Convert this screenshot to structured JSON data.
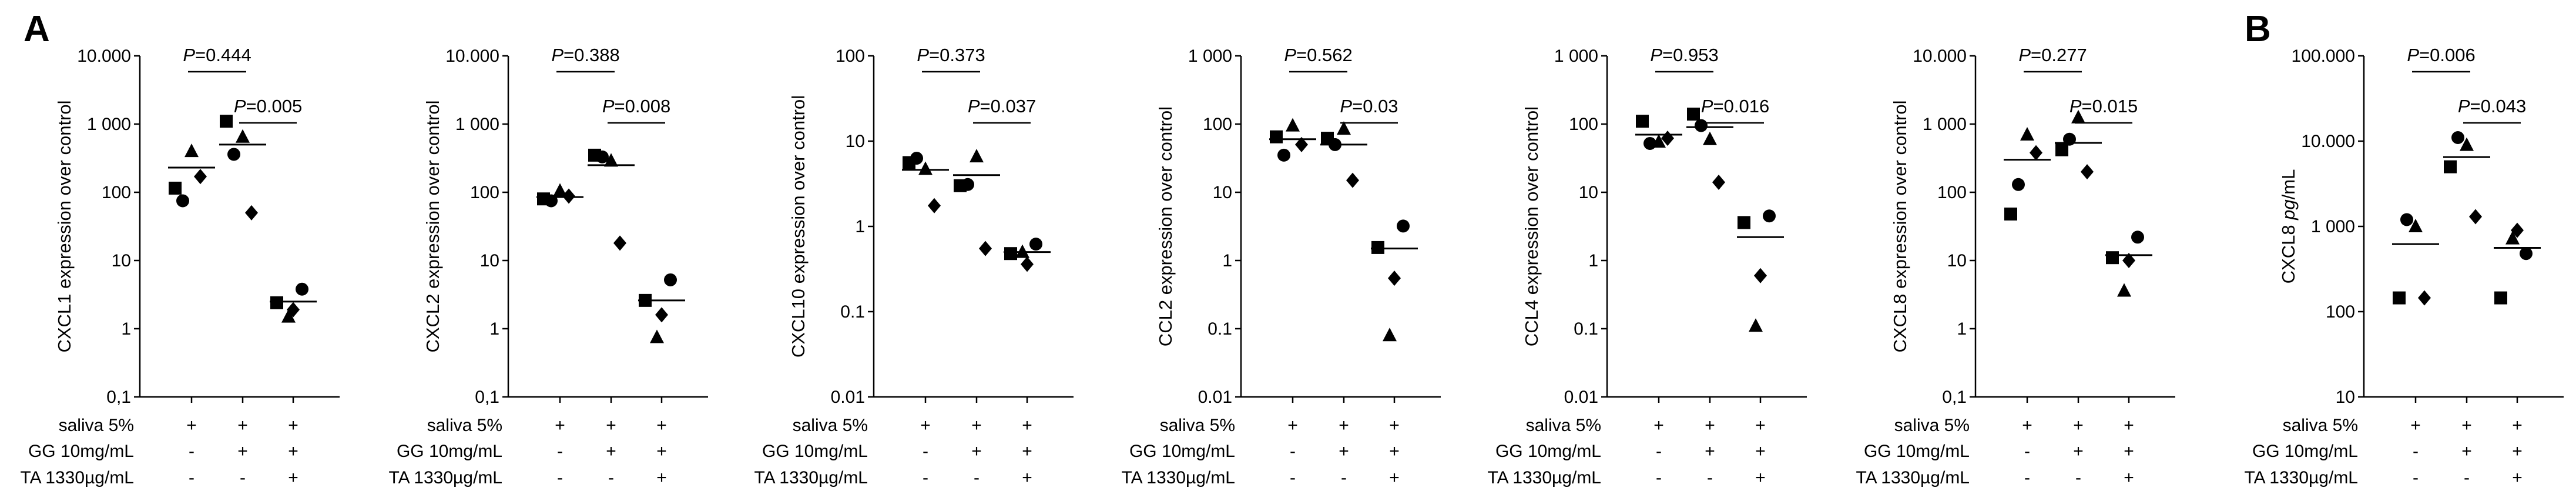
{
  "panel_letters": {
    "a": "A",
    "b": "B"
  },
  "conditions": {
    "labels": [
      "saliva 5%",
      "GG 10mg/mL",
      "TA 1330µg/mL"
    ],
    "signs": [
      [
        "+",
        "+",
        "+"
      ],
      [
        "-",
        "+",
        "+"
      ],
      [
        "-",
        "-",
        "+"
      ]
    ]
  },
  "marker_shapes": [
    "circle",
    "square",
    "triangle",
    "diamond"
  ],
  "chart_data": [
    {
      "type": "scatter",
      "ylabel": "CXCL1 expression over control",
      "yscale": "log",
      "ylim": [
        0.1,
        10000
      ],
      "yticks": [
        {
          "v": 0.1,
          "label": "0,1"
        },
        {
          "v": 1,
          "label": "1"
        },
        {
          "v": 10,
          "label": "10"
        },
        {
          "v": 100,
          "label": "100"
        },
        {
          "v": 1000,
          "label": "1 000"
        },
        {
          "v": 10000,
          "label": "10.000"
        }
      ],
      "groups": [
        {
          "circle": 75,
          "square": 115,
          "triangle": 400,
          "diamond": 170,
          "mean": 230
        },
        {
          "circle": 360,
          "square": 1100,
          "triangle": 650,
          "diamond": 50,
          "mean": 500
        },
        {
          "circle": 3.8,
          "square": 2.4,
          "triangle": 1.5,
          "diamond": 1.9,
          "mean": 2.5
        }
      ],
      "pvalues": [
        {
          "label": "P=0.444",
          "from": 0,
          "to": 1
        },
        {
          "label": "P=0.005",
          "from": 1,
          "to": 2
        }
      ]
    },
    {
      "type": "scatter",
      "ylabel": "CXCL2 expression over control",
      "yscale": "log",
      "ylim": [
        0.1,
        10000
      ],
      "yticks": [
        {
          "v": 0.1,
          "label": "0,1"
        },
        {
          "v": 1,
          "label": "1"
        },
        {
          "v": 10,
          "label": "10"
        },
        {
          "v": 100,
          "label": "100"
        },
        {
          "v": 1000,
          "label": "1 000"
        },
        {
          "v": 10000,
          "label": "10.000"
        }
      ],
      "groups": [
        {
          "circle": 75,
          "square": 80,
          "triangle": 105,
          "diamond": 88,
          "mean": 85
        },
        {
          "circle": 330,
          "square": 350,
          "triangle": 290,
          "diamond": 18,
          "mean": 250
        },
        {
          "circle": 5.2,
          "square": 2.6,
          "triangle": 0.75,
          "diamond": 1.6,
          "mean": 2.6
        }
      ],
      "pvalues": [
        {
          "label": "P=0.388",
          "from": 0,
          "to": 1
        },
        {
          "label": "P=0.008",
          "from": 1,
          "to": 2
        }
      ]
    },
    {
      "type": "scatter",
      "ylabel": "CXCL10 expression over control",
      "yscale": "log",
      "ylim": [
        0.01,
        100
      ],
      "yticks": [
        {
          "v": 0.01,
          "label": "0.01"
        },
        {
          "v": 0.1,
          "label": "0.1"
        },
        {
          "v": 1,
          "label": "1"
        },
        {
          "v": 10,
          "label": "10"
        },
        {
          "v": 100,
          "label": "100"
        }
      ],
      "groups": [
        {
          "circle": 6.3,
          "square": 5.6,
          "triangle": 4.7,
          "diamond": 1.75,
          "mean": 4.6
        },
        {
          "circle": 3.1,
          "square": 3.0,
          "triangle": 6.6,
          "diamond": 0.55,
          "mean": 4.0
        },
        {
          "circle": 0.62,
          "square": 0.48,
          "triangle": 0.5,
          "diamond": 0.36,
          "mean": 0.5
        }
      ],
      "pvalues": [
        {
          "label": "P=0.373",
          "from": 0,
          "to": 1
        },
        {
          "label": "P=0.037",
          "from": 1,
          "to": 2
        }
      ]
    },
    {
      "type": "scatter",
      "ylabel": "CCL2 expression over control",
      "yscale": "log",
      "ylim": [
        0.01,
        1000
      ],
      "yticks": [
        {
          "v": 0.01,
          "label": "0.01"
        },
        {
          "v": 0.1,
          "label": "0.1"
        },
        {
          "v": 1,
          "label": "1"
        },
        {
          "v": 10,
          "label": "10"
        },
        {
          "v": 100,
          "label": "100"
        },
        {
          "v": 1000,
          "label": "1 000"
        }
      ],
      "groups": [
        {
          "circle": 35,
          "square": 65,
          "triangle": 95,
          "diamond": 50,
          "mean": 60
        },
        {
          "circle": 50,
          "square": 62,
          "triangle": 85,
          "diamond": 15,
          "mean": 50
        },
        {
          "circle": 3.2,
          "square": 1.55,
          "triangle": 0.08,
          "diamond": 0.55,
          "mean": 1.5
        }
      ],
      "pvalues": [
        {
          "label": "P=0.562",
          "from": 0,
          "to": 1
        },
        {
          "label": "P=0.03",
          "from": 1,
          "to": 2
        }
      ]
    },
    {
      "type": "scatter",
      "ylabel": "CCL4 expression over control",
      "yscale": "log",
      "ylim": [
        0.01,
        1000
      ],
      "yticks": [
        {
          "v": 0.01,
          "label": "0.01"
        },
        {
          "v": 0.1,
          "label": "0.1"
        },
        {
          "v": 1,
          "label": "1"
        },
        {
          "v": 10,
          "label": "10"
        },
        {
          "v": 100,
          "label": "100"
        },
        {
          "v": 1000,
          "label": "1 000"
        }
      ],
      "groups": [
        {
          "circle": 52,
          "square": 110,
          "triangle": 55,
          "diamond": 62,
          "mean": 70
        },
        {
          "circle": 95,
          "square": 140,
          "triangle": 60,
          "diamond": 14,
          "mean": 90
        },
        {
          "circle": 4.5,
          "square": 3.6,
          "triangle": 0.11,
          "diamond": 0.6,
          "mean": 2.2
        }
      ],
      "pvalues": [
        {
          "label": "P=0.953",
          "from": 0,
          "to": 1
        },
        {
          "label": "P=0.016",
          "from": 1,
          "to": 2
        }
      ]
    },
    {
      "type": "scatter",
      "ylabel": "CXCL8 expression over control",
      "yscale": "log",
      "ylim": [
        0.1,
        10000
      ],
      "yticks": [
        {
          "v": 0.1,
          "label": "0,1"
        },
        {
          "v": 1,
          "label": "1"
        },
        {
          "v": 10,
          "label": "10"
        },
        {
          "v": 100,
          "label": "100"
        },
        {
          "v": 1000,
          "label": "1 000"
        },
        {
          "v": 10000,
          "label": "10.000"
        }
      ],
      "groups": [
        {
          "circle": 130,
          "square": 48,
          "triangle": 700,
          "diamond": 380,
          "mean": 300
        },
        {
          "circle": 600,
          "square": 420,
          "triangle": 1250,
          "diamond": 200,
          "mean": 530
        },
        {
          "circle": 22,
          "square": 11,
          "triangle": 3.6,
          "diamond": 10,
          "mean": 12
        }
      ],
      "pvalues": [
        {
          "label": "P=0.277",
          "from": 0,
          "to": 1
        },
        {
          "label": "P=0.015",
          "from": 1,
          "to": 2
        }
      ]
    },
    {
      "type": "scatter",
      "ylabel": "CXCL8 pg/mL",
      "yscale": "log",
      "ylim": [
        10,
        100000
      ],
      "yticks": [
        {
          "v": 10,
          "label": "10"
        },
        {
          "v": 100,
          "label": "100"
        },
        {
          "v": 1000,
          "label": "1 000"
        },
        {
          "v": 10000,
          "label": "10.000"
        },
        {
          "v": 100000,
          "label": "100.000"
        }
      ],
      "groups": [
        {
          "circle": 1200,
          "square": 145,
          "triangle": 1000,
          "diamond": 145,
          "mean": 620
        },
        {
          "circle": 11000,
          "square": 5000,
          "triangle": 9000,
          "diamond": 1300,
          "mean": 6500
        },
        {
          "circle": 480,
          "square": 145,
          "triangle": 720,
          "diamond": 900,
          "mean": 560
        }
      ],
      "pvalues": [
        {
          "label": "P=0.006",
          "from": 0,
          "to": 1
        },
        {
          "label": "P=0.043",
          "from": 1,
          "to": 2
        }
      ]
    }
  ]
}
